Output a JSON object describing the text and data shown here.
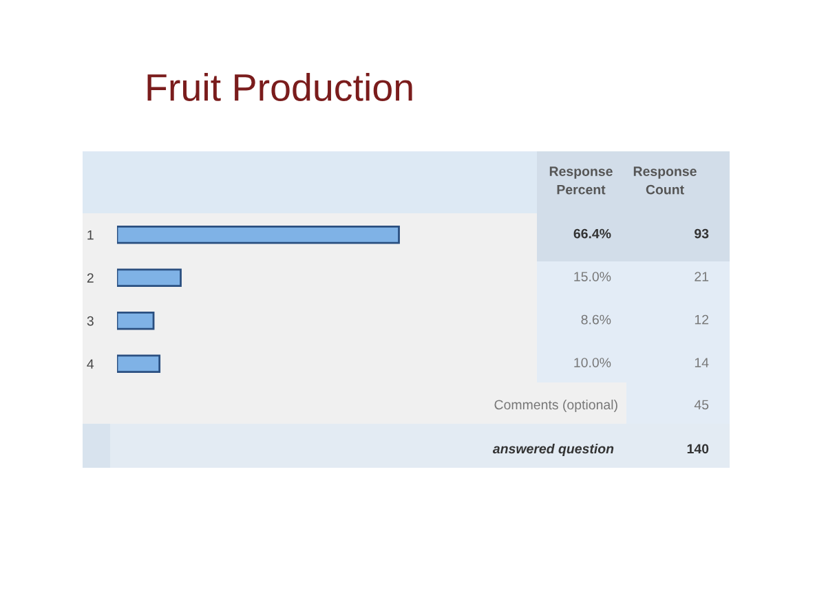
{
  "chart_data": {
    "type": "bar",
    "orientation": "horizontal",
    "title": "Fruit Production",
    "categories": [
      "1",
      "2",
      "3",
      "4"
    ],
    "values": [
      66.4,
      15.0,
      8.6,
      10.0
    ],
    "value_labels": [
      "66.4%",
      "15.0%",
      "8.6%",
      "10.0%"
    ],
    "color": "#7fb2e6",
    "annotations": [
      "Response\nPercent",
      "Response\nCount",
      "93",
      "21",
      "12",
      "14",
      "Comments (optional)",
      "45",
      "answered question",
      "140"
    ]
  }
}
